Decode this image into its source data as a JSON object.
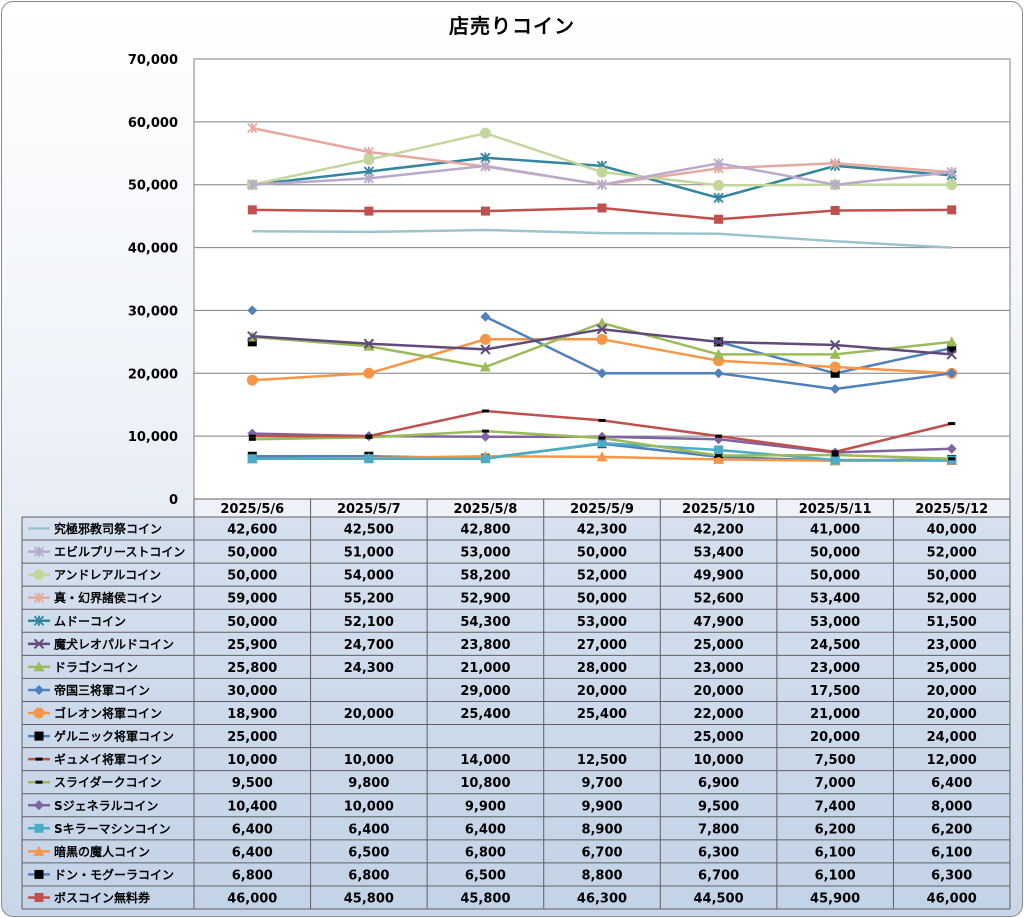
{
  "chart_data": {
    "type": "line",
    "title": "店売りコイン",
    "ylim": [
      0,
      70000
    ],
    "y_ticks": [
      "0",
      "10,000",
      "20,000",
      "30,000",
      "40,000",
      "50,000",
      "60,000",
      "70,000"
    ],
    "categories": [
      "2025/5/6",
      "2025/5/7",
      "2025/5/8",
      "2025/5/9",
      "2025/5/10",
      "2025/5/11",
      "2025/5/12"
    ],
    "grid": "horizontal",
    "legend": "data-table",
    "series": [
      {
        "name": "究極邪教司祭コイン",
        "color": "#9cc4cf",
        "marker": "none",
        "values": [
          42600,
          42500,
          42800,
          42300,
          42200,
          41000,
          40000
        ]
      },
      {
        "name": "エビルプリーストコイン",
        "color": "#b9a9cc",
        "marker": "star",
        "values": [
          50000,
          51000,
          53000,
          50000,
          53400,
          50000,
          52000
        ]
      },
      {
        "name": "アンドレアルコイン",
        "color": "#c3d69b",
        "marker": "circle",
        "values": [
          50000,
          54000,
          58200,
          52000,
          49900,
          50000,
          50000
        ]
      },
      {
        "name": "真・幻界諸侯コイン",
        "color": "#e6a9a0",
        "marker": "star",
        "values": [
          59000,
          55200,
          52900,
          50000,
          52600,
          53400,
          52000
        ]
      },
      {
        "name": "ムドーコイン",
        "color": "#31859c",
        "marker": "star",
        "values": [
          50000,
          52100,
          54300,
          53000,
          47900,
          53000,
          51500
        ]
      },
      {
        "name": "魔犬レオパルドコイン",
        "color": "#604a7b",
        "marker": "x",
        "values": [
          25900,
          24700,
          23800,
          27000,
          25000,
          24500,
          23000
        ]
      },
      {
        "name": "ドラゴンコイン",
        "color": "#9bbb59",
        "marker": "triangle",
        "values": [
          25800,
          24300,
          21000,
          28000,
          23000,
          23000,
          25000
        ]
      },
      {
        "name": "帝国三将軍コイン",
        "color": "#4f81bd",
        "marker": "diamond",
        "values": [
          30000,
          null,
          29000,
          20000,
          20000,
          17500,
          20000
        ]
      },
      {
        "name": "ゴレオン将軍コイン",
        "color": "#f79646",
        "marker": "circle",
        "values": [
          18900,
          20000,
          25400,
          25400,
          22000,
          21000,
          20000
        ]
      },
      {
        "name": "ゲルニック将軍コイン",
        "color": "#4f81bd",
        "marker": "square-black",
        "values": [
          25000,
          null,
          null,
          null,
          25000,
          20000,
          24000
        ]
      },
      {
        "name": "ギュメイ将軍コイン",
        "color": "#c0504d",
        "marker": "dash",
        "values": [
          10000,
          10000,
          14000,
          12500,
          10000,
          7500,
          12000
        ]
      },
      {
        "name": "スライダークコイン",
        "color": "#9bbb59",
        "marker": "dash",
        "values": [
          9500,
          9800,
          10800,
          9700,
          6900,
          7000,
          6400
        ]
      },
      {
        "name": "Sジェネラルコイン",
        "color": "#8064a2",
        "marker": "diamond",
        "values": [
          10400,
          10000,
          9900,
          9900,
          9500,
          7400,
          8000
        ]
      },
      {
        "name": "Sキラーマシンコイン",
        "color": "#4bacc6",
        "marker": "square",
        "values": [
          6400,
          6400,
          6400,
          8900,
          7800,
          6200,
          6200
        ]
      },
      {
        "name": "暗黒の魔人コイン",
        "color": "#f79646",
        "marker": "triangle",
        "values": [
          6400,
          6500,
          6800,
          6700,
          6300,
          6100,
          6100
        ]
      },
      {
        "name": "ドン・モグーラコイン",
        "color": "#4f81bd",
        "marker": "square-black",
        "values": [
          6800,
          6800,
          6500,
          8800,
          6700,
          6100,
          6300
        ]
      },
      {
        "name": "ボスコイン無料券",
        "color": "#c0504d",
        "marker": "square",
        "values": [
          46000,
          45800,
          45800,
          46300,
          44500,
          45900,
          46000
        ]
      }
    ]
  }
}
